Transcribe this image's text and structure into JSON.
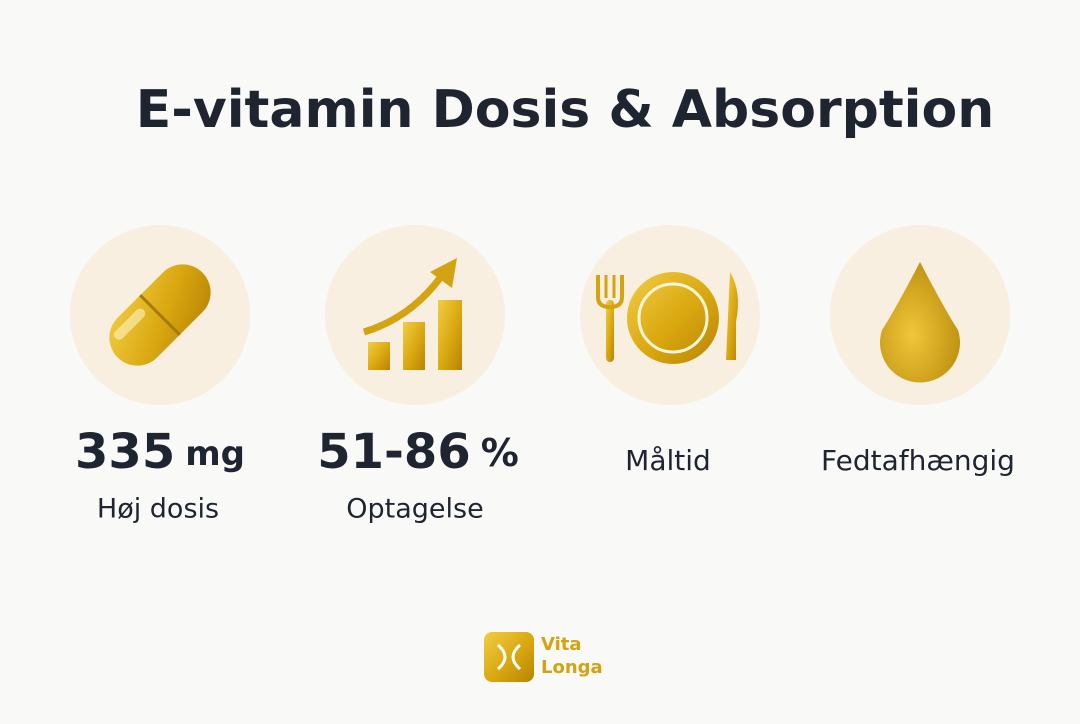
{
  "header": {
    "title": "E-vitamin Dosis & Absorption"
  },
  "items": [
    {
      "value": "335",
      "unit": "mg",
      "label": "Høj dosis"
    },
    {
      "value": "51-86",
      "unit": "%",
      "label": "Optagelse"
    },
    {
      "label": "Måltid"
    },
    {
      "label": "Fedtafhængig"
    }
  ],
  "logo": {
    "line1": "Vita",
    "line2": "Longa"
  }
}
